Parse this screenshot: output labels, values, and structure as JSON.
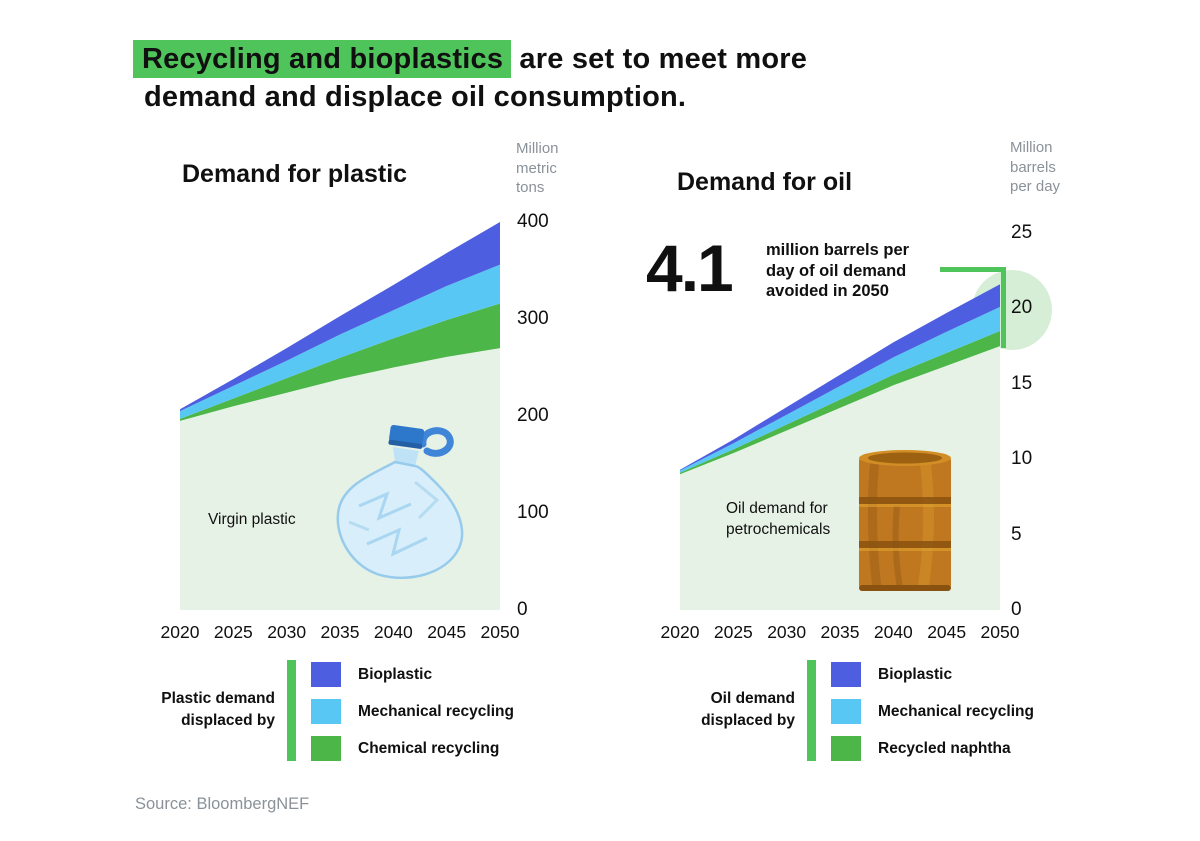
{
  "header": {
    "highlight": "Recycling and bioplastics",
    "rest_line1": " are set to meet more",
    "line2": "demand and displace oil consumption."
  },
  "source": "Source: BloombergNEF",
  "colors": {
    "accent_green": "#4fc45a",
    "band_green": "#4cb648",
    "band_cyan": "#59c7f3",
    "band_blue": "#4d5fe0",
    "base_area": "#e7f2e6",
    "halo_green": "#d6eed6",
    "text_gray": "#8a9299"
  },
  "chart_data": [
    {
      "id": "plastic",
      "type": "area",
      "title": "Demand for plastic",
      "unit_label": "Million metric tons",
      "area_label": "Virgin plastic",
      "categories": [
        "2020",
        "2025",
        "2030",
        "2035",
        "2040",
        "2045",
        "2050"
      ],
      "ylim": [
        0,
        400
      ],
      "yticks": [
        400,
        300,
        200,
        100,
        0
      ],
      "grid": false,
      "series": [
        {
          "name": "Virgin plastic",
          "color": "#e7f2e6",
          "values": [
            195,
            210,
            224,
            238,
            250,
            261,
            270
          ]
        },
        {
          "name": "Chemical recycling",
          "color": "#4cb648",
          "values": [
            2,
            8,
            15,
            22,
            30,
            38,
            46
          ]
        },
        {
          "name": "Mechanical recycling",
          "color": "#59c7f3",
          "values": [
            8,
            13,
            18,
            24,
            29,
            35,
            40
          ]
        },
        {
          "name": "Bioplastic",
          "color": "#4d5fe0",
          "values": [
            2,
            7,
            13,
            19,
            26,
            34,
            44
          ]
        }
      ],
      "legend": {
        "label": "Plastic demand displaced by",
        "items": [
          {
            "label": "Bioplastic",
            "color": "#4d5fe0"
          },
          {
            "label": "Mechanical recycling",
            "color": "#59c7f3"
          },
          {
            "label": "Chemical recycling",
            "color": "#4cb648"
          }
        ]
      }
    },
    {
      "id": "oil",
      "type": "area",
      "title": "Demand for oil",
      "unit_label": "Million barrels per day",
      "area_label": "Oil demand for petrochemicals",
      "categories": [
        "2020",
        "2025",
        "2030",
        "2035",
        "2040",
        "2045",
        "2050"
      ],
      "ylim": [
        0,
        25
      ],
      "yticks": [
        25,
        20,
        15,
        10,
        5,
        0
      ],
      "grid": false,
      "annotation": {
        "big": "4.1",
        "lines": [
          "million barrels per",
          "day of oil demand",
          "avoided in 2050"
        ]
      },
      "series": [
        {
          "name": "Oil demand for petrochemicals",
          "color": "#e7f2e6",
          "values": [
            9.0,
            10.4,
            11.9,
            13.4,
            14.9,
            16.2,
            17.5
          ]
        },
        {
          "name": "Recycled naphtha",
          "color": "#4cb648",
          "values": [
            0.1,
            0.25,
            0.4,
            0.55,
            0.7,
            0.85,
            1.0
          ]
        },
        {
          "name": "Mechanical recycling",
          "color": "#59c7f3",
          "values": [
            0.15,
            0.4,
            0.65,
            0.9,
            1.15,
            1.4,
            1.6
          ]
        },
        {
          "name": "Bioplastic",
          "color": "#4d5fe0",
          "values": [
            0.05,
            0.25,
            0.5,
            0.75,
            1.0,
            1.25,
            1.5
          ]
        }
      ],
      "legend": {
        "label": "Oil demand displaced by",
        "items": [
          {
            "label": "Bioplastic",
            "color": "#4d5fe0"
          },
          {
            "label": "Mechanical recycling",
            "color": "#59c7f3"
          },
          {
            "label": "Recycled naphtha",
            "color": "#4cb648"
          }
        ]
      }
    }
  ]
}
